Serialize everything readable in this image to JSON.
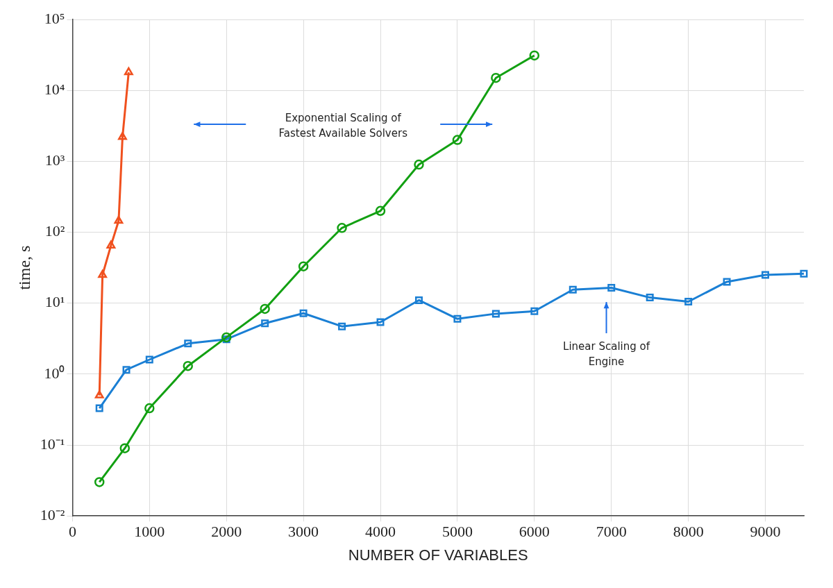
{
  "chart_data": {
    "type": "line",
    "xlabel": "NUMBER OF VARIABLES",
    "ylabel": "time, s",
    "log": "y",
    "grid": true,
    "legend": false,
    "line_style": "solid",
    "xlim": [
      0,
      9500
    ],
    "xticks": [
      0,
      1000,
      2000,
      3000,
      4000,
      5000,
      6000,
      7000,
      8000,
      9000
    ],
    "ylim": [
      0.01,
      100000
    ],
    "yticks": [
      {
        "value": 0.01,
        "label": "10⁻²"
      },
      {
        "value": 0.1,
        "label": "10⁻¹"
      },
      {
        "value": 1,
        "label": "10⁰"
      },
      {
        "value": 10,
        "label": "10¹"
      },
      {
        "value": 100,
        "label": "10²"
      },
      {
        "value": 1000,
        "label": "10³"
      },
      {
        "value": 10000,
        "label": "10⁴"
      },
      {
        "value": 100000,
        "label": "10⁵"
      }
    ],
    "series": [
      {
        "color": "#f0501e",
        "marker": "triangle",
        "x": [
          350,
          390,
          500,
          600,
          650,
          730
        ],
        "values": [
          0.5,
          25,
          65,
          145,
          2200,
          18000
        ]
      },
      {
        "color": "#12a012",
        "marker": "circle",
        "x": [
          350,
          680,
          1000,
          1500,
          2000,
          2500,
          3000,
          3500,
          4000,
          4500,
          5000,
          5500,
          6000
        ],
        "values": [
          0.03,
          0.09,
          0.33,
          1.3,
          3.3,
          8.3,
          33,
          115,
          200,
          900,
          2000,
          15000,
          31000
        ]
      },
      {
        "color": "#1a7fd4",
        "marker": "square",
        "x": [
          350,
          700,
          1000,
          1500,
          2000,
          2500,
          3000,
          3500,
          4000,
          4500,
          5000,
          5500,
          6000,
          6500,
          7000,
          7500,
          8000,
          8500,
          9000,
          9500
        ],
        "values": [
          0.33,
          1.15,
          1.6,
          2.7,
          3.1,
          5.2,
          7.2,
          4.7,
          5.4,
          11,
          6,
          7.1,
          7.7,
          15.5,
          16.5,
          12,
          10.5,
          20,
          25,
          26
        ]
      }
    ],
    "annotations": [
      "Exponential Scaling of\nFastest Available Solvers",
      "Linear Scaling of\nEngine"
    ]
  }
}
